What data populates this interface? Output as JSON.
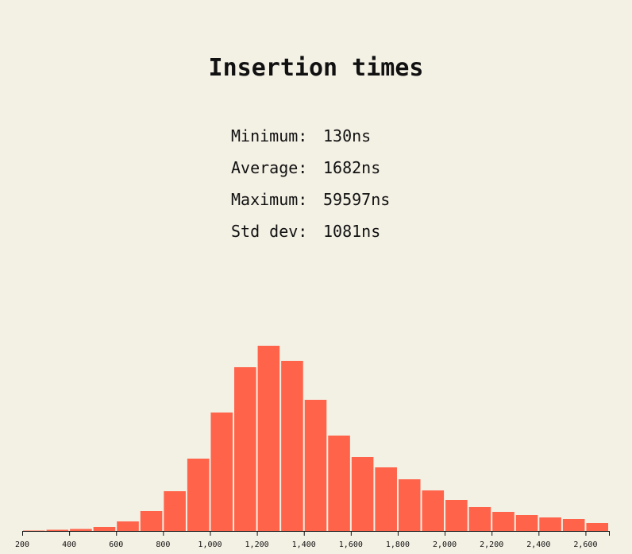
{
  "title": "Insertion times",
  "stats": [
    {
      "label": "Minimum:",
      "value": "130ns"
    },
    {
      "label": "Average:",
      "value": "1682ns"
    },
    {
      "label": "Maximum:",
      "value": "59597ns"
    },
    {
      "label": "Std dev:",
      "value": "1081ns"
    }
  ],
  "colors": {
    "bar": "#ff634a",
    "background": "#f3f0e4",
    "axis": "#111111"
  },
  "chart_data": {
    "type": "bar",
    "title": "",
    "xlabel": "",
    "ylabel": "",
    "bin_width": 100,
    "xlim": [
      200,
      2700
    ],
    "bin_starts": [
      200,
      300,
      400,
      500,
      600,
      700,
      800,
      900,
      1000,
      1100,
      1200,
      1300,
      1400,
      1500,
      1600,
      1700,
      1800,
      1900,
      2000,
      2100,
      2200,
      2300,
      2400,
      2500,
      2600
    ],
    "values": [
      0.5,
      1.5,
      2.5,
      5,
      12,
      25,
      50,
      91,
      149,
      206,
      233,
      214,
      165,
      120,
      93,
      80,
      65,
      51,
      39,
      30,
      24,
      20,
      17,
      15,
      10
    ],
    "xticks": [
      200,
      400,
      600,
      800,
      1000,
      1200,
      1400,
      1600,
      1800,
      2000,
      2200,
      2400,
      2600
    ],
    "xtick_labels": [
      "200",
      "400",
      "600",
      "800",
      "1,000",
      "1,200",
      "1,400",
      "1,600",
      "1,800",
      "2,000",
      "2,200",
      "2,400",
      "2,600"
    ],
    "ylim": [
      0,
      233
    ],
    "grid": false,
    "legend": false
  }
}
